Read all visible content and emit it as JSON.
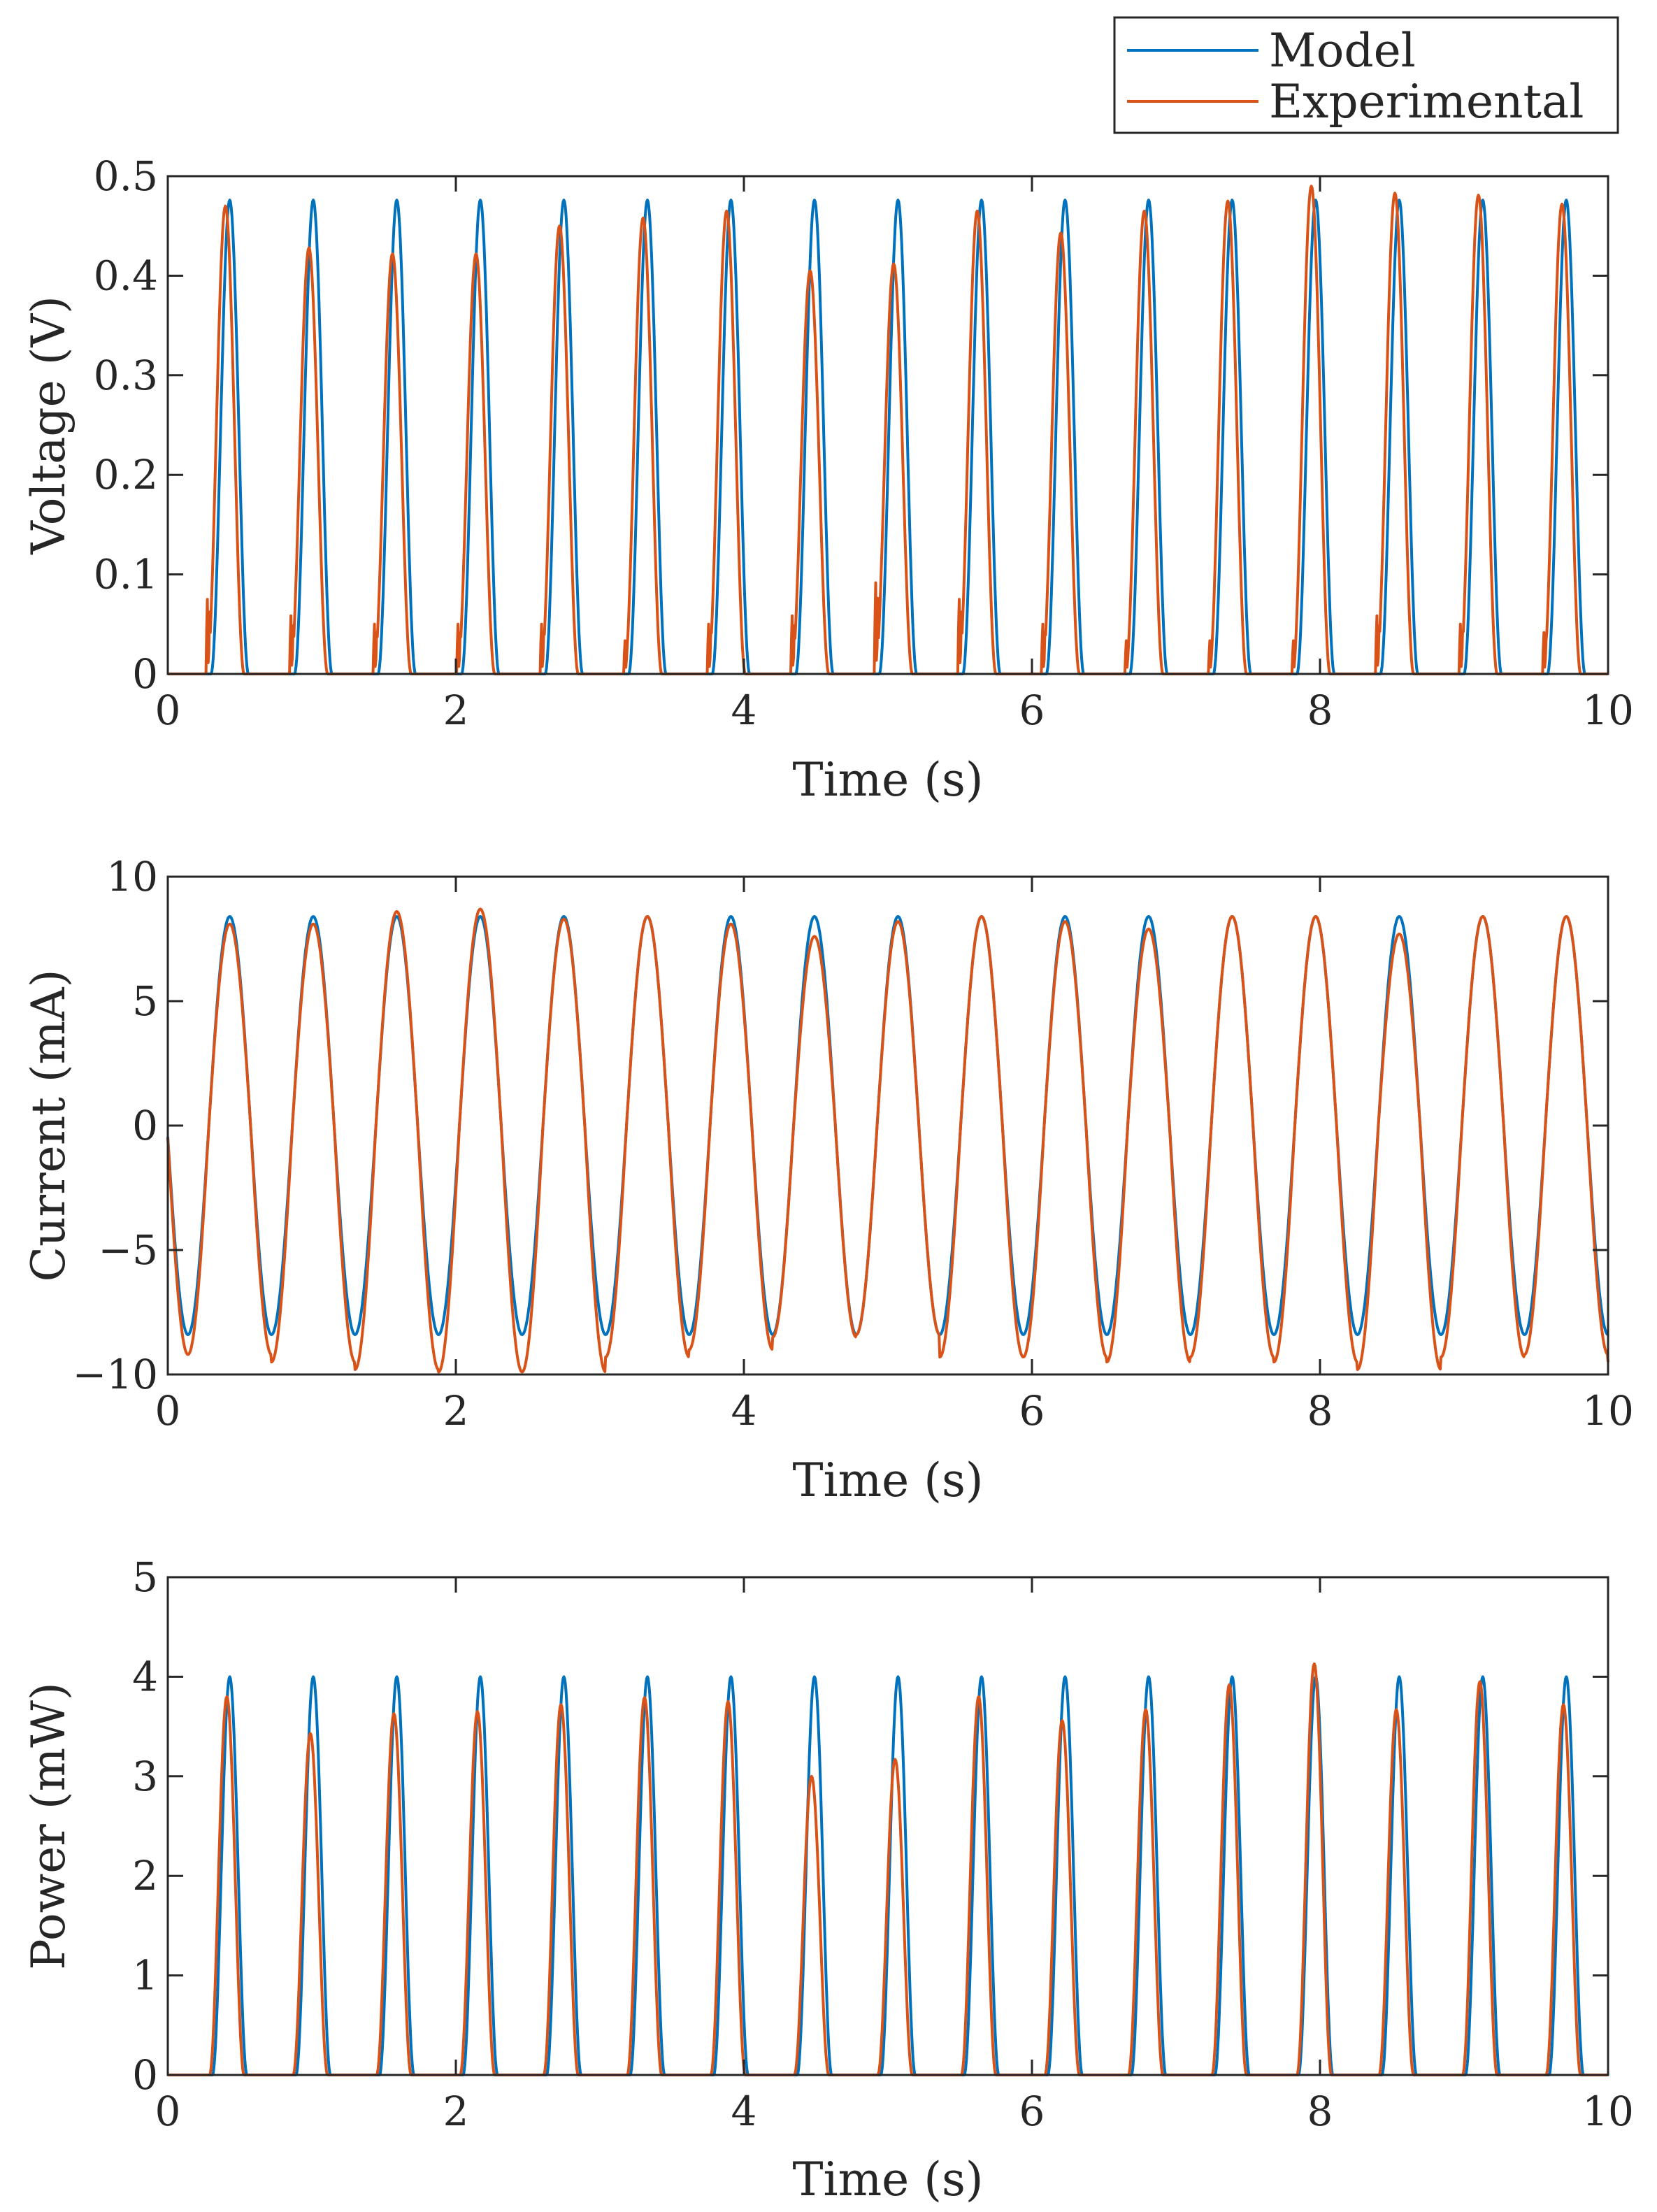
{
  "legend": {
    "position": "top-right",
    "entries": [
      {
        "label": "Model",
        "color": "#0072BD"
      },
      {
        "label": "Experimental",
        "color": "#D95319"
      }
    ]
  },
  "chart_data": [
    {
      "type": "line",
      "id": "voltage",
      "title": "",
      "xlabel": "Time (s)",
      "ylabel": "Voltage (V)",
      "xlim": [
        0,
        10
      ],
      "ylim": [
        0,
        0.5
      ],
      "xticks": [
        0,
        2,
        4,
        6,
        8,
        10
      ],
      "xtick_labels": [
        "0",
        "2",
        "4",
        "6",
        "8",
        "10"
      ],
      "yticks": [
        0,
        0.1,
        0.2,
        0.3,
        0.4,
        0.5
      ],
      "ytick_labels": [
        "0",
        "0.1",
        "0.2",
        "0.3",
        "0.4",
        "0.5"
      ],
      "grid": false,
      "period_s": 0.58,
      "pulse_width_s": 0.26,
      "series": [
        {
          "name": "Model",
          "color": "#0072BD",
          "kind": "pulse",
          "peak_times": [
            0.43,
            1.01,
            1.59,
            2.17,
            2.75,
            3.33,
            3.91,
            4.49,
            5.07,
            5.65,
            6.23,
            6.81,
            7.39,
            7.97,
            8.55,
            9.13,
            9.71
          ],
          "peaks": [
            0.476,
            0.476,
            0.476,
            0.476,
            0.476,
            0.476,
            0.476,
            0.476,
            0.476,
            0.476,
            0.476,
            0.476,
            0.476,
            0.476,
            0.476,
            0.476,
            0.476
          ]
        },
        {
          "name": "Experimental",
          "color": "#D95319",
          "kind": "pulse",
          "peak_times": [
            0.4,
            0.98,
            1.56,
            2.14,
            2.72,
            3.3,
            3.88,
            4.46,
            5.04,
            5.62,
            6.2,
            6.78,
            7.36,
            7.94,
            8.52,
            9.1,
            9.68
          ],
          "peaks": [
            0.47,
            0.428,
            0.422,
            0.422,
            0.45,
            0.458,
            0.465,
            0.405,
            0.412,
            0.465,
            0.443,
            0.465,
            0.475,
            0.49,
            0.483,
            0.481,
            0.472
          ],
          "precursor_spikes": [
            0.09,
            0.07,
            0.06,
            0.06,
            0.06,
            0.04,
            0.06,
            0.07,
            0.11,
            0.09,
            0.06,
            0.04,
            0.04,
            0.04,
            0.07,
            0.06,
            0.05
          ]
        }
      ]
    },
    {
      "type": "line",
      "id": "current",
      "title": "",
      "xlabel": "Time (s)",
      "ylabel": "Current (mA)",
      "xlim": [
        0,
        10
      ],
      "ylim": [
        -10,
        10
      ],
      "xticks": [
        0,
        2,
        4,
        6,
        8,
        10
      ],
      "xtick_labels": [
        "0",
        "2",
        "4",
        "6",
        "8",
        "10"
      ],
      "yticks": [
        -10,
        -5,
        0,
        5,
        10
      ],
      "ytick_labels": [
        "−10",
        "−5",
        "0",
        "5",
        "10"
      ],
      "grid": false,
      "period_s": 0.58,
      "series": [
        {
          "name": "Model",
          "color": "#0072BD",
          "kind": "sine",
          "peak_times": [
            0.43,
            1.01,
            1.59,
            2.17,
            2.75,
            3.33,
            3.91,
            4.49,
            5.07,
            5.65,
            6.23,
            6.81,
            7.39,
            7.97,
            8.55,
            9.13,
            9.71
          ],
          "maxima": [
            8.4,
            8.4,
            8.4,
            8.4,
            8.4,
            8.4,
            8.4,
            8.4,
            8.4,
            8.4,
            8.4,
            8.4,
            8.4,
            8.4,
            8.4,
            8.4,
            8.4
          ],
          "minima": [
            -8.4,
            -8.4,
            -8.4,
            -8.4,
            -8.4,
            -8.4,
            -8.4,
            -8.4,
            -8.4,
            -8.4,
            -8.4,
            -8.4,
            -8.4,
            -8.4,
            -8.4,
            -8.4,
            -8.4
          ]
        },
        {
          "name": "Experimental",
          "color": "#D95319",
          "kind": "sine",
          "peak_times": [
            0.43,
            1.01,
            1.59,
            2.17,
            2.75,
            3.33,
            3.91,
            4.49,
            5.07,
            5.65,
            6.23,
            6.81,
            7.39,
            7.97,
            8.55,
            9.13,
            9.71
          ],
          "maxima": [
            8.1,
            8.1,
            8.6,
            8.7,
            8.3,
            8.4,
            8.1,
            7.6,
            8.2,
            8.4,
            8.2,
            7.9,
            8.4,
            8.4,
            7.7,
            8.4,
            8.4
          ],
          "minima": [
            -9.2,
            -9.5,
            -9.8,
            -9.9,
            -9.9,
            -9.3,
            -9.0,
            -8.5,
            -8.4,
            -9.3,
            -9.3,
            -9.5,
            -9.3,
            -9.5,
            -9.8,
            -9.3,
            -9.2,
            -9.5
          ]
        }
      ]
    },
    {
      "type": "line",
      "id": "power",
      "title": "",
      "xlabel": "Time (s)",
      "ylabel": "Power (mW)",
      "xlim": [
        0,
        10
      ],
      "ylim": [
        0,
        5
      ],
      "xticks": [
        0,
        2,
        4,
        6,
        8,
        10
      ],
      "xtick_labels": [
        "0",
        "2",
        "4",
        "6",
        "8",
        "10"
      ],
      "yticks": [
        0,
        1,
        2,
        3,
        4,
        5
      ],
      "ytick_labels": [
        "0",
        "1",
        "2",
        "3",
        "4",
        "5"
      ],
      "grid": false,
      "period_s": 0.58,
      "pulse_width_s": 0.24,
      "series": [
        {
          "name": "Model",
          "color": "#0072BD",
          "kind": "pulse",
          "peak_times": [
            0.43,
            1.01,
            1.59,
            2.17,
            2.75,
            3.33,
            3.91,
            4.49,
            5.07,
            5.65,
            6.23,
            6.81,
            7.39,
            7.97,
            8.55,
            9.13,
            9.71
          ],
          "peaks": [
            4.0,
            4.0,
            4.0,
            4.0,
            4.0,
            4.0,
            4.0,
            4.0,
            4.0,
            4.0,
            4.0,
            4.0,
            4.0,
            4.0,
            4.0,
            4.0,
            4.0
          ]
        },
        {
          "name": "Experimental",
          "color": "#D95319",
          "kind": "pulse",
          "peak_times": [
            0.41,
            0.99,
            1.57,
            2.15,
            2.73,
            3.31,
            3.89,
            4.47,
            5.05,
            5.63,
            6.21,
            6.79,
            7.37,
            7.96,
            8.53,
            9.11,
            9.69
          ],
          "peaks": [
            3.8,
            3.43,
            3.63,
            3.65,
            3.72,
            3.79,
            3.75,
            3.0,
            3.17,
            3.8,
            3.56,
            3.67,
            3.92,
            4.13,
            3.67,
            3.95,
            3.72
          ]
        }
      ]
    }
  ]
}
